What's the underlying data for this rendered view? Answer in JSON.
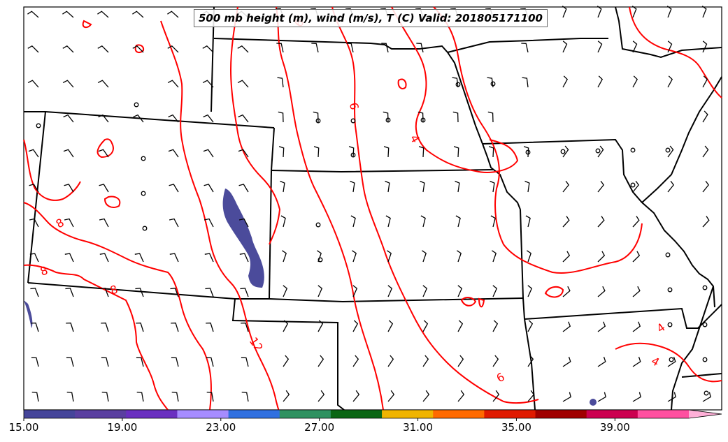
{
  "title": "500 mb height (m), wind (m/s), T (C) Valid: 201805171100",
  "colorbar": {
    "ticks": [
      "15.00",
      "19.00",
      "23.00",
      "27.00",
      "31.00",
      "35.00",
      "39.00"
    ],
    "tick_values": [
      15,
      19,
      23,
      27,
      31,
      35,
      39
    ],
    "range": [
      15,
      42
    ],
    "extend": "max",
    "colors": [
      "#45459a",
      "#5a3fa0",
      "#6a2fc0",
      "#a68cff",
      "#3070e0",
      "#2e9160",
      "#0a6614",
      "#f0b400",
      "#ff6a00",
      "#e01a00",
      "#a00000",
      "#cc0050",
      "#ff50a0",
      "#ffb0d8"
    ]
  },
  "contours": {
    "color": "#ff0000",
    "labels": [
      "8",
      "8",
      "8",
      "6",
      "4",
      "12",
      "4",
      "4",
      "6",
      "6"
    ]
  },
  "barb_color": "#000000",
  "border_color": "#000000",
  "shaded_color": "#4b4b9b"
}
